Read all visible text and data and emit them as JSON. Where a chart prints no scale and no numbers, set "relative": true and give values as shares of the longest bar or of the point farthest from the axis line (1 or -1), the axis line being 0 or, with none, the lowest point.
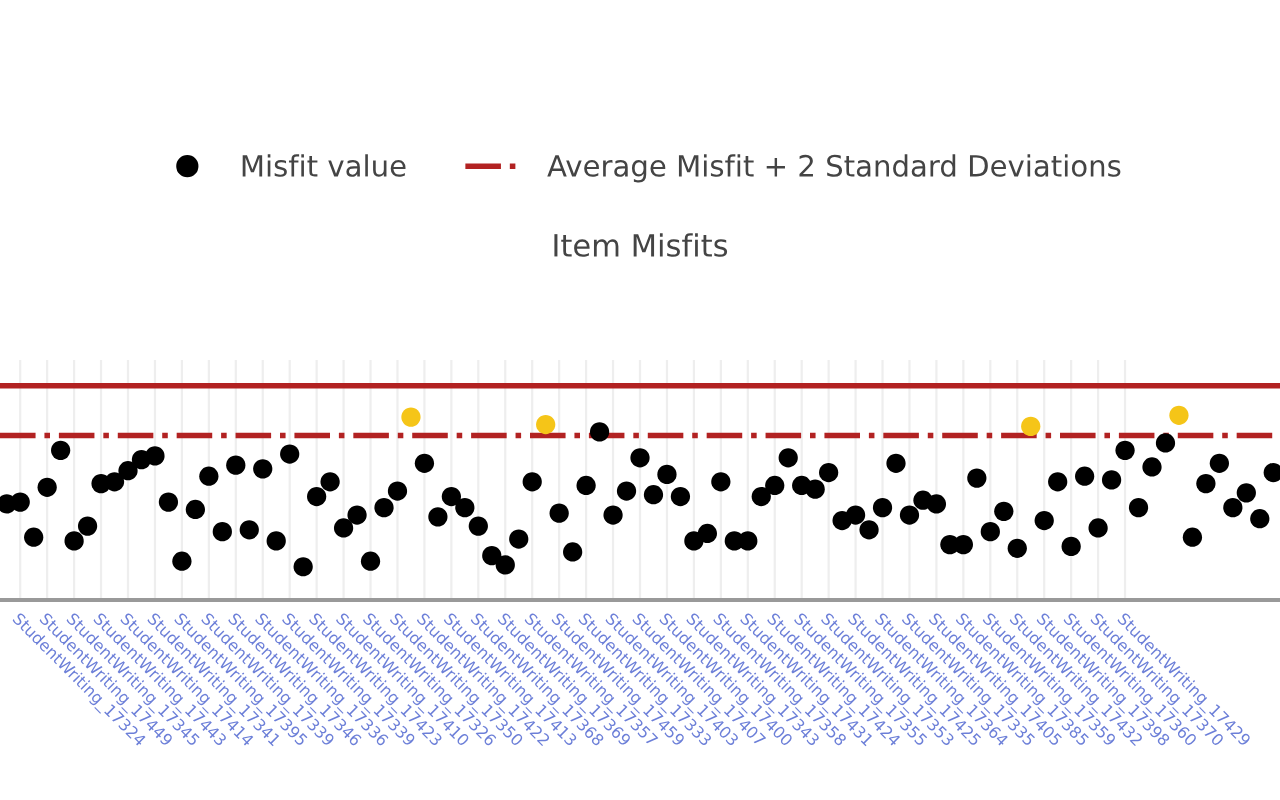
{
  "chart_data": {
    "type": "scatter",
    "title": "Item Misfits",
    "relative": true,
    "grid": "x",
    "legend": "top",
    "marker": "circle",
    "categories": [
      null,
      "StudentWriting_17324",
      null,
      "StudentWriting_17449",
      null,
      "StudentWriting_17345",
      null,
      "StudentWriting_17443",
      null,
      "StudentWriting_17414",
      null,
      "StudentWriting_17341",
      null,
      "StudentWriting_17395",
      null,
      "StudentWriting_17339",
      null,
      "StudentWriting_17346",
      null,
      "StudentWriting_17336",
      null,
      "StudentWriting_17339",
      null,
      "StudentWriting_17423",
      null,
      "StudentWriting_17410",
      null,
      "StudentWriting_17326",
      null,
      "StudentWriting_17350",
      null,
      "StudentWriting_17422",
      null,
      "StudentWriting_17413",
      null,
      "StudentWriting_17368",
      null,
      "StudentWriting_17369",
      null,
      "StudentWriting_17357",
      null,
      "StudentWriting_17459",
      null,
      "StudentWriting_17333",
      null,
      "StudentWriting_17403",
      null,
      "StudentWriting_17407",
      null,
      "StudentWriting_17400",
      null,
      "StudentWriting_17343",
      null,
      "StudentWriting_17358",
      null,
      "StudentWriting_17431",
      null,
      "StudentWriting_17424",
      null,
      "StudentWriting_17355",
      null,
      "StudentWriting_17353",
      null,
      "StudentWriting_17425",
      null,
      "StudentWriting_17364",
      null,
      "StudentWriting_17335",
      null,
      "StudentWriting_17405",
      null,
      "StudentWriting_17385",
      null,
      "StudentWriting_17359",
      null,
      "StudentWriting_17432",
      null,
      "StudentWriting_17398",
      null,
      "StudentWriting_17360",
      null,
      "StudentWriting_17370",
      null,
      "StudentWriting_17429",
      null,
      null,
      null,
      null,
      null,
      null,
      null,
      null,
      null,
      null,
      null
    ],
    "series": [
      {
        "name": "Misfit value",
        "values": [
          0.52,
          0.53,
          0.34,
          0.61,
          0.81,
          0.32,
          0.4,
          0.63,
          0.64,
          0.7,
          0.76,
          0.78,
          0.53,
          0.21,
          0.49,
          0.67,
          0.37,
          0.73,
          0.38,
          0.71,
          0.32,
          0.79,
          0.18,
          0.56,
          0.64,
          0.39,
          0.46,
          0.21,
          0.5,
          0.59,
          0.99,
          0.74,
          0.45,
          0.56,
          0.5,
          0.4,
          0.24,
          0.19,
          0.33,
          0.64,
          0.95,
          0.47,
          0.26,
          0.62,
          0.91,
          0.46,
          0.59,
          0.77,
          0.57,
          0.68,
          0.56,
          0.32,
          0.36,
          0.64,
          0.32,
          0.32,
          0.56,
          0.62,
          0.77,
          0.62,
          0.6,
          0.69,
          0.43,
          0.46,
          0.38,
          0.5,
          0.74,
          0.46,
          0.54,
          0.52,
          0.3,
          0.3,
          0.66,
          0.37,
          0.48,
          0.28,
          0.94,
          0.43,
          0.64,
          0.29,
          0.67,
          0.39,
          0.65,
          0.81,
          0.5,
          0.72,
          0.85,
          1.0,
          0.34,
          0.63,
          0.74,
          0.5,
          0.58,
          0.44,
          0.69
        ],
        "colors": [
          "#000000",
          "#000000",
          "#000000",
          "#000000",
          "#000000",
          "#000000",
          "#000000",
          "#000000",
          "#000000",
          "#000000",
          "#000000",
          "#000000",
          "#000000",
          "#000000",
          "#000000",
          "#000000",
          "#000000",
          "#000000",
          "#000000",
          "#000000",
          "#000000",
          "#000000",
          "#000000",
          "#000000",
          "#000000",
          "#000000",
          "#000000",
          "#000000",
          "#000000",
          "#000000",
          "#f5c518",
          "#000000",
          "#000000",
          "#000000",
          "#000000",
          "#000000",
          "#000000",
          "#000000",
          "#000000",
          "#000000",
          "#f5c518",
          "#000000",
          "#000000",
          "#000000",
          "#000000",
          "#000000",
          "#000000",
          "#000000",
          "#000000",
          "#000000",
          "#000000",
          "#000000",
          "#000000",
          "#000000",
          "#000000",
          "#000000",
          "#000000",
          "#000000",
          "#000000",
          "#000000",
          "#000000",
          "#000000",
          "#000000",
          "#000000",
          "#000000",
          "#000000",
          "#000000",
          "#000000",
          "#000000",
          "#000000",
          "#000000",
          "#000000",
          "#000000",
          "#000000",
          "#000000",
          "#000000",
          "#f5c518",
          "#000000",
          "#000000",
          "#000000",
          "#000000",
          "#000000",
          "#000000",
          "#000000",
          "#000000",
          "#000000",
          "#000000",
          "#f5c518",
          "#000000",
          "#000000",
          "#000000",
          "#000000",
          "#000000",
          "#000000",
          "#000000"
        ],
        "color": "#000000"
      }
    ],
    "ref_lines": [
      {
        "axis": "y",
        "value": 1.16,
        "color": "#b22222",
        "line_style": "solid"
      },
      {
        "axis": "y",
        "value": 0.89,
        "color": "#b22222",
        "line_style": "dashdot",
        "label": "Average Misfit + 2 Standard Deviations"
      }
    ]
  }
}
